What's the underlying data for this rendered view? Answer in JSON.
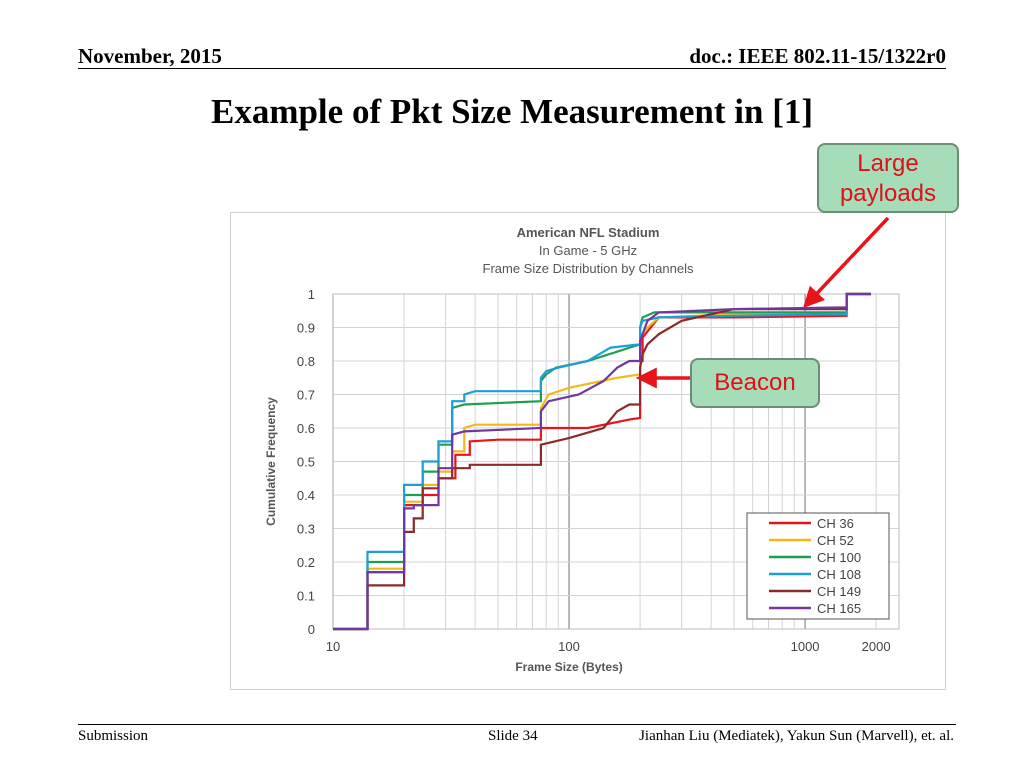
{
  "header": {
    "date": "November, 2015",
    "doc": "doc.: IEEE 802.11-15/1322r0"
  },
  "slide_title": "Example of Pkt Size Measurement in [1]",
  "callouts": {
    "large_line1": "Large",
    "large_line2": "payloads",
    "beacon": "Beacon"
  },
  "footer": {
    "left": "Submission",
    "slide": "Slide 34",
    "authors": "Jianhan Liu (Mediatek), Yakun Sun (Marvell),  et. al."
  },
  "chart_data": {
    "type": "line",
    "title_lines": [
      "American NFL Stadium",
      "In Game - 5 GHz",
      "Frame Size Distribution by Channels"
    ],
    "xlabel": "Frame Size (Bytes)",
    "ylabel": "Cumulative Frequency",
    "x_scale": "log",
    "xlim": [
      10,
      2500
    ],
    "ylim": [
      0,
      1
    ],
    "x_ticks": [
      {
        "value": 10,
        "label": "10"
      },
      {
        "value": 100,
        "label": "100"
      },
      {
        "value": 1000,
        "label": "1000"
      },
      {
        "value": 2000,
        "label": "2000"
      }
    ],
    "y_ticks": [
      {
        "value": 0,
        "label": "0"
      },
      {
        "value": 0.1,
        "label": "0.1"
      },
      {
        "value": 0.2,
        "label": "0.2"
      },
      {
        "value": 0.3,
        "label": "0.3"
      },
      {
        "value": 0.4,
        "label": "0.4"
      },
      {
        "value": 0.5,
        "label": "0.5"
      },
      {
        "value": 0.6,
        "label": "0.6"
      },
      {
        "value": 0.7,
        "label": "0.7"
      },
      {
        "value": 0.8,
        "label": "0.8"
      },
      {
        "value": 0.9,
        "label": "0.9"
      },
      {
        "value": 1,
        "label": "1"
      }
    ],
    "grid": true,
    "legend_position": "bottom-right",
    "series": [
      {
        "name": "CH 36",
        "color": "#e8141c",
        "points": [
          [
            10,
            0
          ],
          [
            14,
            0
          ],
          [
            14,
            0.17
          ],
          [
            20,
            0.17
          ],
          [
            20,
            0.37
          ],
          [
            24,
            0.37
          ],
          [
            24,
            0.4
          ],
          [
            28,
            0.4
          ],
          [
            28,
            0.45
          ],
          [
            33,
            0.45
          ],
          [
            33,
            0.52
          ],
          [
            38,
            0.52
          ],
          [
            38,
            0.56
          ],
          [
            50,
            0.565
          ],
          [
            76,
            0.565
          ],
          [
            76,
            0.6
          ],
          [
            120,
            0.6
          ],
          [
            180,
            0.625
          ],
          [
            200,
            0.63
          ],
          [
            200,
            0.8
          ],
          [
            205,
            0.8
          ],
          [
            205,
            0.87
          ],
          [
            240,
            0.93
          ],
          [
            500,
            0.93
          ],
          [
            1500,
            0.935
          ],
          [
            1500,
            1
          ],
          [
            1900,
            1
          ]
        ]
      },
      {
        "name": "CH 52",
        "color": "#f2b81c",
        "points": [
          [
            10,
            0
          ],
          [
            14,
            0
          ],
          [
            14,
            0.18
          ],
          [
            20,
            0.18
          ],
          [
            20,
            0.38
          ],
          [
            24,
            0.38
          ],
          [
            24,
            0.43
          ],
          [
            28,
            0.43
          ],
          [
            28,
            0.47
          ],
          [
            32,
            0.47
          ],
          [
            32,
            0.53
          ],
          [
            36,
            0.53
          ],
          [
            36,
            0.6
          ],
          [
            40,
            0.61
          ],
          [
            76,
            0.61
          ],
          [
            76,
            0.66
          ],
          [
            82,
            0.7
          ],
          [
            100,
            0.72
          ],
          [
            160,
            0.75
          ],
          [
            200,
            0.76
          ],
          [
            200,
            0.87
          ],
          [
            215,
            0.9
          ],
          [
            240,
            0.93
          ],
          [
            500,
            0.94
          ],
          [
            1500,
            0.94
          ],
          [
            1500,
            1
          ],
          [
            1900,
            1
          ]
        ]
      },
      {
        "name": "CH 100",
        "color": "#1e9e52",
        "points": [
          [
            10,
            0
          ],
          [
            14,
            0
          ],
          [
            14,
            0.2
          ],
          [
            20,
            0.2
          ],
          [
            20,
            0.4
          ],
          [
            24,
            0.4
          ],
          [
            24,
            0.47
          ],
          [
            28,
            0.47
          ],
          [
            28,
            0.55
          ],
          [
            32,
            0.55
          ],
          [
            32,
            0.66
          ],
          [
            36,
            0.67
          ],
          [
            76,
            0.68
          ],
          [
            76,
            0.74
          ],
          [
            80,
            0.76
          ],
          [
            88,
            0.78
          ],
          [
            120,
            0.8
          ],
          [
            200,
            0.85
          ],
          [
            200,
            0.9
          ],
          [
            205,
            0.93
          ],
          [
            230,
            0.945
          ],
          [
            500,
            0.945
          ],
          [
            1500,
            0.945
          ],
          [
            1500,
            1
          ],
          [
            1900,
            1
          ]
        ]
      },
      {
        "name": "CH 108",
        "color": "#1e9ed8",
        "points": [
          [
            10,
            0
          ],
          [
            14,
            0
          ],
          [
            14,
            0.23
          ],
          [
            20,
            0.23
          ],
          [
            20,
            0.43
          ],
          [
            24,
            0.43
          ],
          [
            24,
            0.5
          ],
          [
            28,
            0.5
          ],
          [
            28,
            0.56
          ],
          [
            32,
            0.56
          ],
          [
            32,
            0.68
          ],
          [
            36,
            0.68
          ],
          [
            36,
            0.7
          ],
          [
            40,
            0.71
          ],
          [
            76,
            0.71
          ],
          [
            76,
            0.75
          ],
          [
            80,
            0.77
          ],
          [
            90,
            0.78
          ],
          [
            120,
            0.8
          ],
          [
            150,
            0.84
          ],
          [
            200,
            0.85
          ],
          [
            200,
            0.9
          ],
          [
            205,
            0.92
          ],
          [
            240,
            0.93
          ],
          [
            500,
            0.935
          ],
          [
            1500,
            0.94
          ],
          [
            1500,
            1
          ],
          [
            1900,
            1
          ]
        ]
      },
      {
        "name": "CH 149",
        "color": "#8b2a2a",
        "points": [
          [
            10,
            0
          ],
          [
            14,
            0
          ],
          [
            14,
            0.13
          ],
          [
            20,
            0.13
          ],
          [
            20,
            0.29
          ],
          [
            22,
            0.29
          ],
          [
            22,
            0.33
          ],
          [
            24,
            0.33
          ],
          [
            24,
            0.42
          ],
          [
            28,
            0.42
          ],
          [
            28,
            0.45
          ],
          [
            32,
            0.45
          ],
          [
            32,
            0.48
          ],
          [
            38,
            0.48
          ],
          [
            38,
            0.49
          ],
          [
            76,
            0.49
          ],
          [
            76,
            0.55
          ],
          [
            100,
            0.57
          ],
          [
            140,
            0.6
          ],
          [
            160,
            0.65
          ],
          [
            180,
            0.67
          ],
          [
            200,
            0.67
          ],
          [
            200,
            0.78
          ],
          [
            205,
            0.82
          ],
          [
            215,
            0.85
          ],
          [
            240,
            0.88
          ],
          [
            300,
            0.92
          ],
          [
            500,
            0.955
          ],
          [
            1500,
            0.955
          ],
          [
            1500,
            1
          ],
          [
            1900,
            1
          ]
        ]
      },
      {
        "name": "CH 165",
        "color": "#7236a0",
        "points": [
          [
            10,
            0
          ],
          [
            14,
            0
          ],
          [
            14,
            0.17
          ],
          [
            20,
            0.17
          ],
          [
            20,
            0.36
          ],
          [
            22,
            0.36
          ],
          [
            22,
            0.37
          ],
          [
            28,
            0.37
          ],
          [
            28,
            0.48
          ],
          [
            32,
            0.48
          ],
          [
            32,
            0.58
          ],
          [
            36,
            0.59
          ],
          [
            76,
            0.6
          ],
          [
            76,
            0.65
          ],
          [
            82,
            0.68
          ],
          [
            110,
            0.7
          ],
          [
            140,
            0.74
          ],
          [
            160,
            0.78
          ],
          [
            180,
            0.8
          ],
          [
            200,
            0.8
          ],
          [
            200,
            0.86
          ],
          [
            215,
            0.92
          ],
          [
            240,
            0.945
          ],
          [
            500,
            0.955
          ],
          [
            1500,
            0.96
          ],
          [
            1500,
            1
          ],
          [
            1900,
            1
          ]
        ]
      }
    ]
  }
}
